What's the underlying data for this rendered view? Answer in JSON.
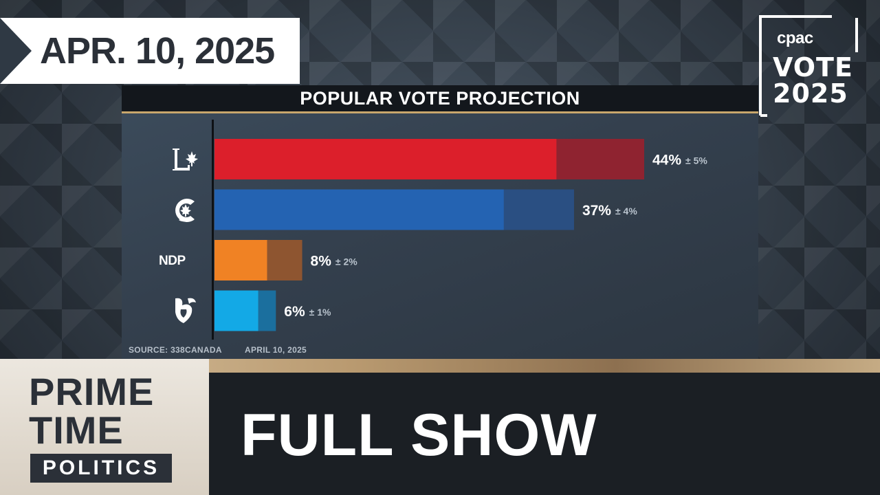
{
  "date_banner": "APR. 10, 2025",
  "cpac_logo": {
    "brand": "cpac",
    "line1": "VOTE",
    "line2": "2025"
  },
  "chart_title": "POPULAR VOTE PROJECTION",
  "source": "SOURCE: 338CANADA",
  "source_date": "APRIL 10, 2025",
  "show": {
    "name_line1": "PRIME",
    "name_line2": "TIME",
    "name_line3": "POLITICS",
    "title": "FULL SHOW"
  },
  "chart_data": {
    "type": "bar",
    "orientation": "horizontal",
    "title": "POPULAR VOTE PROJECTION",
    "categories": [
      "Liberal",
      "Conservative",
      "NDP",
      "Bloc Québécois"
    ],
    "values": [
      44,
      37,
      8,
      6
    ],
    "margins": [
      5,
      4,
      2,
      1
    ],
    "value_labels": [
      "44%",
      "37%",
      "8%",
      "6%"
    ],
    "margin_labels": [
      "± 5%",
      "± 4%",
      "± 2%",
      "± 1%"
    ],
    "category_labels_shown": [
      "",
      "",
      "NDP",
      ""
    ],
    "xlim": [
      0,
      49
    ],
    "colors": [
      "#dc1f2b",
      "#2463b2",
      "#f08224",
      "#13a9e6"
    ],
    "margin_colors": [
      "#8f2330",
      "#2a4f82",
      "#8e5530",
      "#1b6f9e"
    ],
    "source": "SOURCE: 338CANADA",
    "date": "APRIL 10, 2025"
  }
}
